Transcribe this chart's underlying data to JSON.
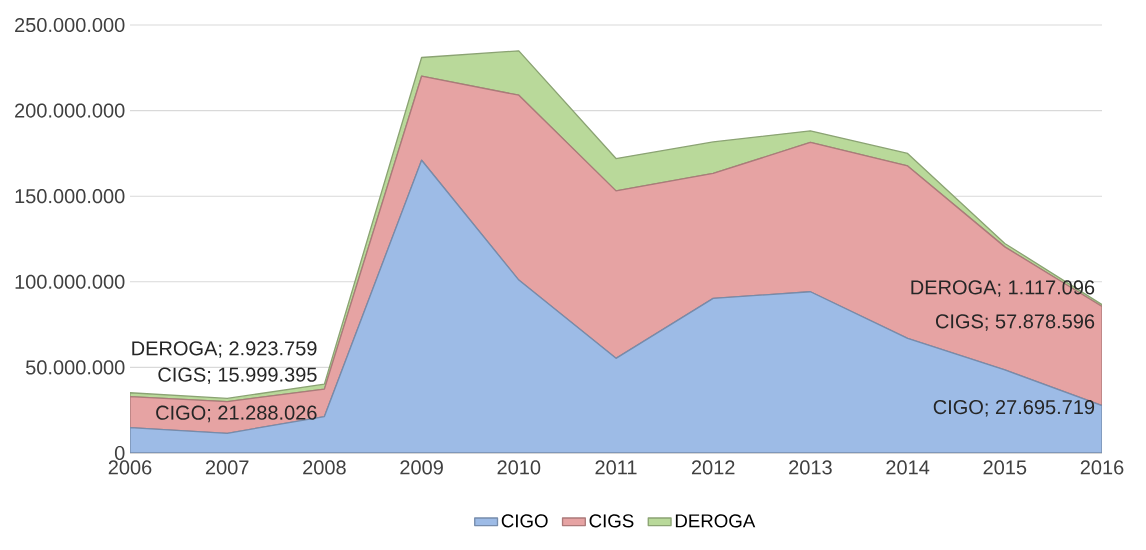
{
  "chart_data": {
    "type": "area",
    "stacked": true,
    "categories": [
      "2006",
      "2007",
      "2008",
      "2009",
      "2010",
      "2011",
      "2012",
      "2013",
      "2014",
      "2015",
      "2016"
    ],
    "series": [
      {
        "name": "CIGO",
        "color": "#9dbbe6",
        "values": [
          14800000,
          11500000,
          21288026,
          171000000,
          101000000,
          55300000,
          90300000,
          94200000,
          67000000,
          48500000,
          27695719
        ],
        "value_labels": [
          null,
          null,
          "CIGO; 21.288.026",
          null,
          null,
          null,
          null,
          null,
          null,
          null,
          "CIGO; 27.695.719"
        ]
      },
      {
        "name": "CIGS",
        "color": "#e6a3a3",
        "values": [
          18100000,
          18500000,
          15999395,
          49100000,
          108000000,
          97800000,
          73000000,
          87200000,
          100700000,
          71900000,
          57878596
        ],
        "value_labels": [
          null,
          null,
          "CIGS; 15.999.395",
          null,
          null,
          null,
          null,
          null,
          null,
          null,
          "CIGS; 57.878.596"
        ]
      },
      {
        "name": "DEROGA",
        "color": "#b9d99a",
        "values": [
          2300000,
          1900000,
          2923759,
          10900000,
          25900000,
          18900000,
          18400000,
          6800000,
          7300000,
          2000000,
          1117096
        ],
        "value_labels": [
          null,
          null,
          "DEROGA; 2.923.759",
          null,
          null,
          null,
          null,
          null,
          null,
          null,
          "DEROGA; 1.117.096"
        ]
      }
    ],
    "ylim": [
      0,
      250000000
    ],
    "yticks": [
      {
        "value": 0,
        "label": "0"
      },
      {
        "value": 50000000,
        "label": "50.000.000"
      },
      {
        "value": 100000000,
        "label": "100.000.000"
      },
      {
        "value": 150000000,
        "label": "150.000.000"
      },
      {
        "value": 200000000,
        "label": "200.000.000"
      },
      {
        "value": 250000000,
        "label": "250.000.000"
      }
    ],
    "grid": "y",
    "legend": "bottom"
  }
}
